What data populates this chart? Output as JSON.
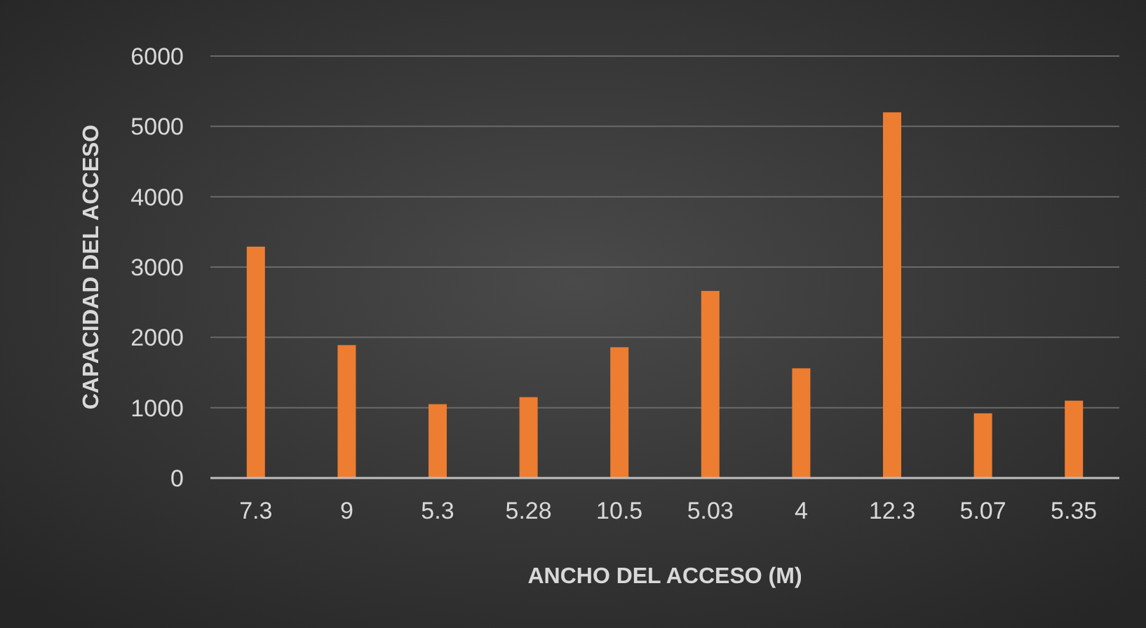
{
  "chart_data": {
    "type": "bar",
    "xlabel": "ANCHO DEL ACCESO (M)",
    "ylabel": "CAPACIDAD DEL ACCESO",
    "categories": [
      "7.3",
      "9",
      "5.3",
      "5.28",
      "10.5",
      "5.03",
      "4",
      "12.3",
      "5.07",
      "5.35"
    ],
    "values": [
      3290,
      1890,
      1050,
      1150,
      1860,
      2660,
      1560,
      5200,
      920,
      1100
    ],
    "color": "#ed7d31",
    "ylim": [
      0,
      6000
    ],
    "yticks": [
      0,
      1000,
      2000,
      3000,
      4000,
      5000,
      6000
    ],
    "grid": true
  }
}
